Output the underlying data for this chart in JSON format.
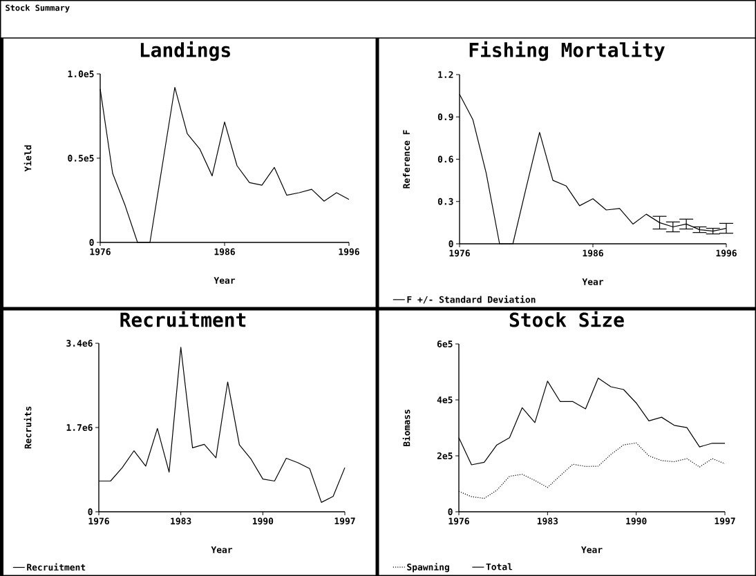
{
  "chart_data": [
    {
      "type": "line",
      "title": "Landings",
      "xlabel": "Year",
      "ylabel": "Yield",
      "annotations": [
        "Stock Summary"
      ],
      "x": [
        1976,
        1977,
        1978,
        1979,
        1980,
        1981,
        1982,
        1983,
        1984,
        1985,
        1986,
        1987,
        1988,
        1989,
        1990,
        1991,
        1992,
        1993,
        1994,
        1995,
        1996
      ],
      "series": [
        {
          "color": "#000000",
          "values": [
            91000,
            41000,
            22000,
            0,
            0,
            46000,
            92000,
            64500,
            55500,
            39500,
            71500,
            45500,
            35500,
            34000,
            44500,
            28000,
            29500,
            31500,
            24500,
            29500,
            25500
          ]
        }
      ],
      "xlim": [
        1976,
        1996
      ],
      "ylim": [
        0,
        100000
      ],
      "xticks": [
        1976,
        1986,
        1996
      ],
      "yticks": [
        0,
        {
          "value": 50000,
          "label": "0.5e5"
        },
        {
          "value": 100000,
          "label": "1.0e5"
        }
      ]
    },
    {
      "type": "line",
      "title": "Fishing Mortality",
      "xlabel": "Year",
      "ylabel": "Reference F",
      "x": [
        1976,
        1977,
        1978,
        1979,
        1980,
        1981,
        1982,
        1983,
        1984,
        1985,
        1986,
        1987,
        1988,
        1989,
        1990,
        1991,
        1992,
        1993,
        1994,
        1995,
        1996
      ],
      "series": [
        {
          "name": "F +/- Standard Deviation",
          "color": "#000000",
          "values": [
            1.06,
            0.88,
            0.5,
            0,
            0,
            0.4,
            0.79,
            0.45,
            0.41,
            0.27,
            0.32,
            0.24,
            0.25,
            0.14,
            0.21,
            0.15,
            0.12,
            0.14,
            0.1,
            0.09,
            0.11
          ],
          "errors": [
            null,
            null,
            null,
            null,
            null,
            null,
            null,
            null,
            null,
            null,
            null,
            null,
            null,
            null,
            null,
            0.045,
            0.035,
            0.035,
            0.02,
            0.02,
            0.035
          ]
        }
      ],
      "xlim": [
        1976,
        1996
      ],
      "ylim": [
        0,
        1.2
      ],
      "xticks": [
        1976,
        1986,
        1996
      ],
      "yticks": [
        0,
        0.3,
        0.6,
        0.9,
        1.2
      ],
      "legend": "bottom left"
    },
    {
      "type": "line",
      "title": "Recruitment",
      "xlabel": "Year",
      "ylabel": "Recruits",
      "x": [
        1976,
        1977,
        1978,
        1979,
        1980,
        1981,
        1982,
        1983,
        1984,
        1985,
        1986,
        1987,
        1988,
        1989,
        1990,
        1991,
        1992,
        1993,
        1994,
        1995,
        1996,
        1997
      ],
      "series": [
        {
          "name": "Recruitment",
          "color": "#000000",
          "values": [
            620000,
            620000,
            890000,
            1230000,
            920000,
            1680000,
            800000,
            3320000,
            1290000,
            1360000,
            1090000,
            2620000,
            1350000,
            1060000,
            660000,
            620000,
            1080000,
            990000,
            870000,
            190000,
            310000,
            890000
          ]
        }
      ],
      "xlim": [
        1976,
        1997
      ],
      "ylim": [
        0,
        3400000
      ],
      "xticks": [
        1976,
        1983,
        1990,
        1997
      ],
      "yticks": [
        0,
        {
          "value": 1700000,
          "label": "1.7e6"
        },
        {
          "value": 3400000,
          "label": "3.4e6"
        }
      ],
      "legend": "bottom left"
    },
    {
      "type": "line",
      "title": "Stock Size",
      "xlabel": "Year",
      "ylabel": "Biomass",
      "x": [
        1976,
        1977,
        1978,
        1979,
        1980,
        1981,
        1982,
        1983,
        1984,
        1985,
        1986,
        1987,
        1988,
        1989,
        1990,
        1991,
        1992,
        1993,
        1994,
        1995,
        1996,
        1997
      ],
      "series": [
        {
          "name": "Spawning",
          "color": "#000000",
          "line_style": "dotted",
          "values": [
            73000,
            54000,
            48000,
            77000,
            127000,
            134000,
            112000,
            87000,
            129000,
            170000,
            162000,
            163000,
            205000,
            239000,
            246000,
            200000,
            183000,
            179000,
            190000,
            160000,
            190000,
            172000
          ]
        },
        {
          "name": "Total",
          "color": "#000000",
          "line_style": "solid",
          "values": [
            265000,
            168000,
            177000,
            239000,
            265000,
            372000,
            319000,
            467000,
            394000,
            394000,
            368000,
            478000,
            447000,
            437000,
            389000,
            325000,
            338000,
            309000,
            301000,
            232000,
            245000,
            245000
          ]
        }
      ],
      "xlim": [
        1976,
        1997
      ],
      "ylim": [
        0,
        600000
      ],
      "xticks": [
        1976,
        1983,
        1990,
        1997
      ],
      "yticks": [
        0,
        {
          "value": 200000,
          "label": "2e5"
        },
        {
          "value": 400000,
          "label": "4e5"
        },
        {
          "value": 600000,
          "label": "6e5"
        }
      ],
      "legend": "bottom left"
    }
  ]
}
